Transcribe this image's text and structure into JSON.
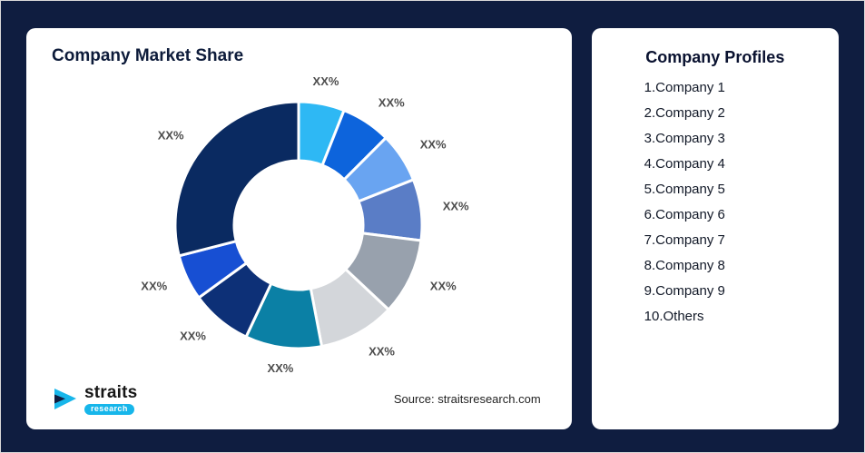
{
  "left_card": {
    "title": "Company Market Share",
    "source": "Source: straitsresearch.com",
    "logo": {
      "name": "straits",
      "sub": "research"
    }
  },
  "right_card": {
    "title": "Company Profiles",
    "items": [
      "1.Company 1",
      "2.Company 2",
      "3.Company 3",
      "4.Company 4",
      "5.Company 5",
      "6.Company 6",
      "7.Company 7",
      "8.Company 8",
      "9.Company 9",
      "10.Others"
    ]
  },
  "chart_data": {
    "type": "pie",
    "variant": "donut",
    "title": "Company Market Share",
    "start_angle_deg": 0,
    "direction": "clockwise",
    "inner_radius_ratio": 0.52,
    "legend_position": "none",
    "segments": [
      {
        "label": "Company 1",
        "display_value": "XX%",
        "estimated_pct": 6,
        "color": "#2eb8f4"
      },
      {
        "label": "Company 2",
        "display_value": "XX%",
        "estimated_pct": 6.5,
        "color": "#0d64dc"
      },
      {
        "label": "Company 3",
        "display_value": "XX%",
        "estimated_pct": 6.5,
        "color": "#69a4f1"
      },
      {
        "label": "Company 4",
        "display_value": "XX%",
        "estimated_pct": 8,
        "color": "#5a7dc6"
      },
      {
        "label": "Company 5",
        "display_value": "XX%",
        "estimated_pct": 10,
        "color": "#98a1ad"
      },
      {
        "label": "Company 6",
        "display_value": "XX%",
        "estimated_pct": 10,
        "color": "#d3d6da"
      },
      {
        "label": "Company 7",
        "display_value": "XX%",
        "estimated_pct": 10,
        "color": "#0b80a5"
      },
      {
        "label": "Company 8",
        "display_value": "XX%",
        "estimated_pct": 8,
        "color": "#0d3077"
      },
      {
        "label": "Company 9",
        "display_value": "XX%",
        "estimated_pct": 6,
        "color": "#174fd3"
      },
      {
        "label": "Others",
        "display_value": "XX%",
        "estimated_pct": 29,
        "color": "#0a2a61"
      }
    ],
    "source": "Source: straitsresearch.com"
  }
}
